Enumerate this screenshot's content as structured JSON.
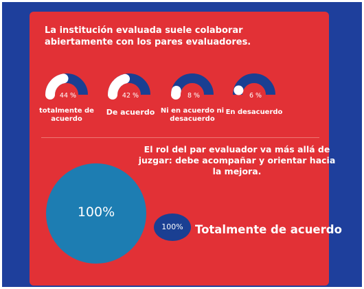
{
  "survey": {
    "title": "La institución evaluada suele colaborar abiertamente con los pares evaluadores."
  },
  "second": {
    "title": "El rol del par evaluador va más allá de juzgar: debe acompañar y orientar hacia la mejora."
  },
  "colors": {
    "background": "#1e3f9c",
    "card": "#e23136",
    "gauge_track": "#1a3f92",
    "gauge_fill": "#ffffff",
    "circle": "#1d7db2",
    "legend_pill": "#1a3f92"
  },
  "chart_data": [
    {
      "type": "gauge",
      "title": "La institución evaluada suele colaborar abiertamente con los pares evaluadores.",
      "categories": [
        "totalmente de acuerdo",
        "De acuerdo",
        "Ni en acuerdo ni desacuerdo",
        "En desacuerdo"
      ],
      "values": [
        44,
        42,
        8,
        6
      ],
      "value_labels": [
        "44 %",
        "42 %",
        "8 %",
        "6 %"
      ],
      "label_lines": [
        [
          "totalmente de",
          "acuerdo"
        ],
        [
          "De acuerdo"
        ],
        [
          "Ni en acuerdo ni",
          "desacuerdo"
        ],
        [
          "En desacuerdo"
        ]
      ],
      "unit": "%"
    },
    {
      "type": "pie",
      "title": "El rol del par evaluador va más allá de juzgar: debe acompañar y orientar hacia la mejora.",
      "categories": [
        "Totalmente de acuerdo"
      ],
      "values": [
        100
      ],
      "value_label": "100%",
      "legend_value": "100%",
      "legend_label": "Totalmente de acuerdo"
    }
  ]
}
